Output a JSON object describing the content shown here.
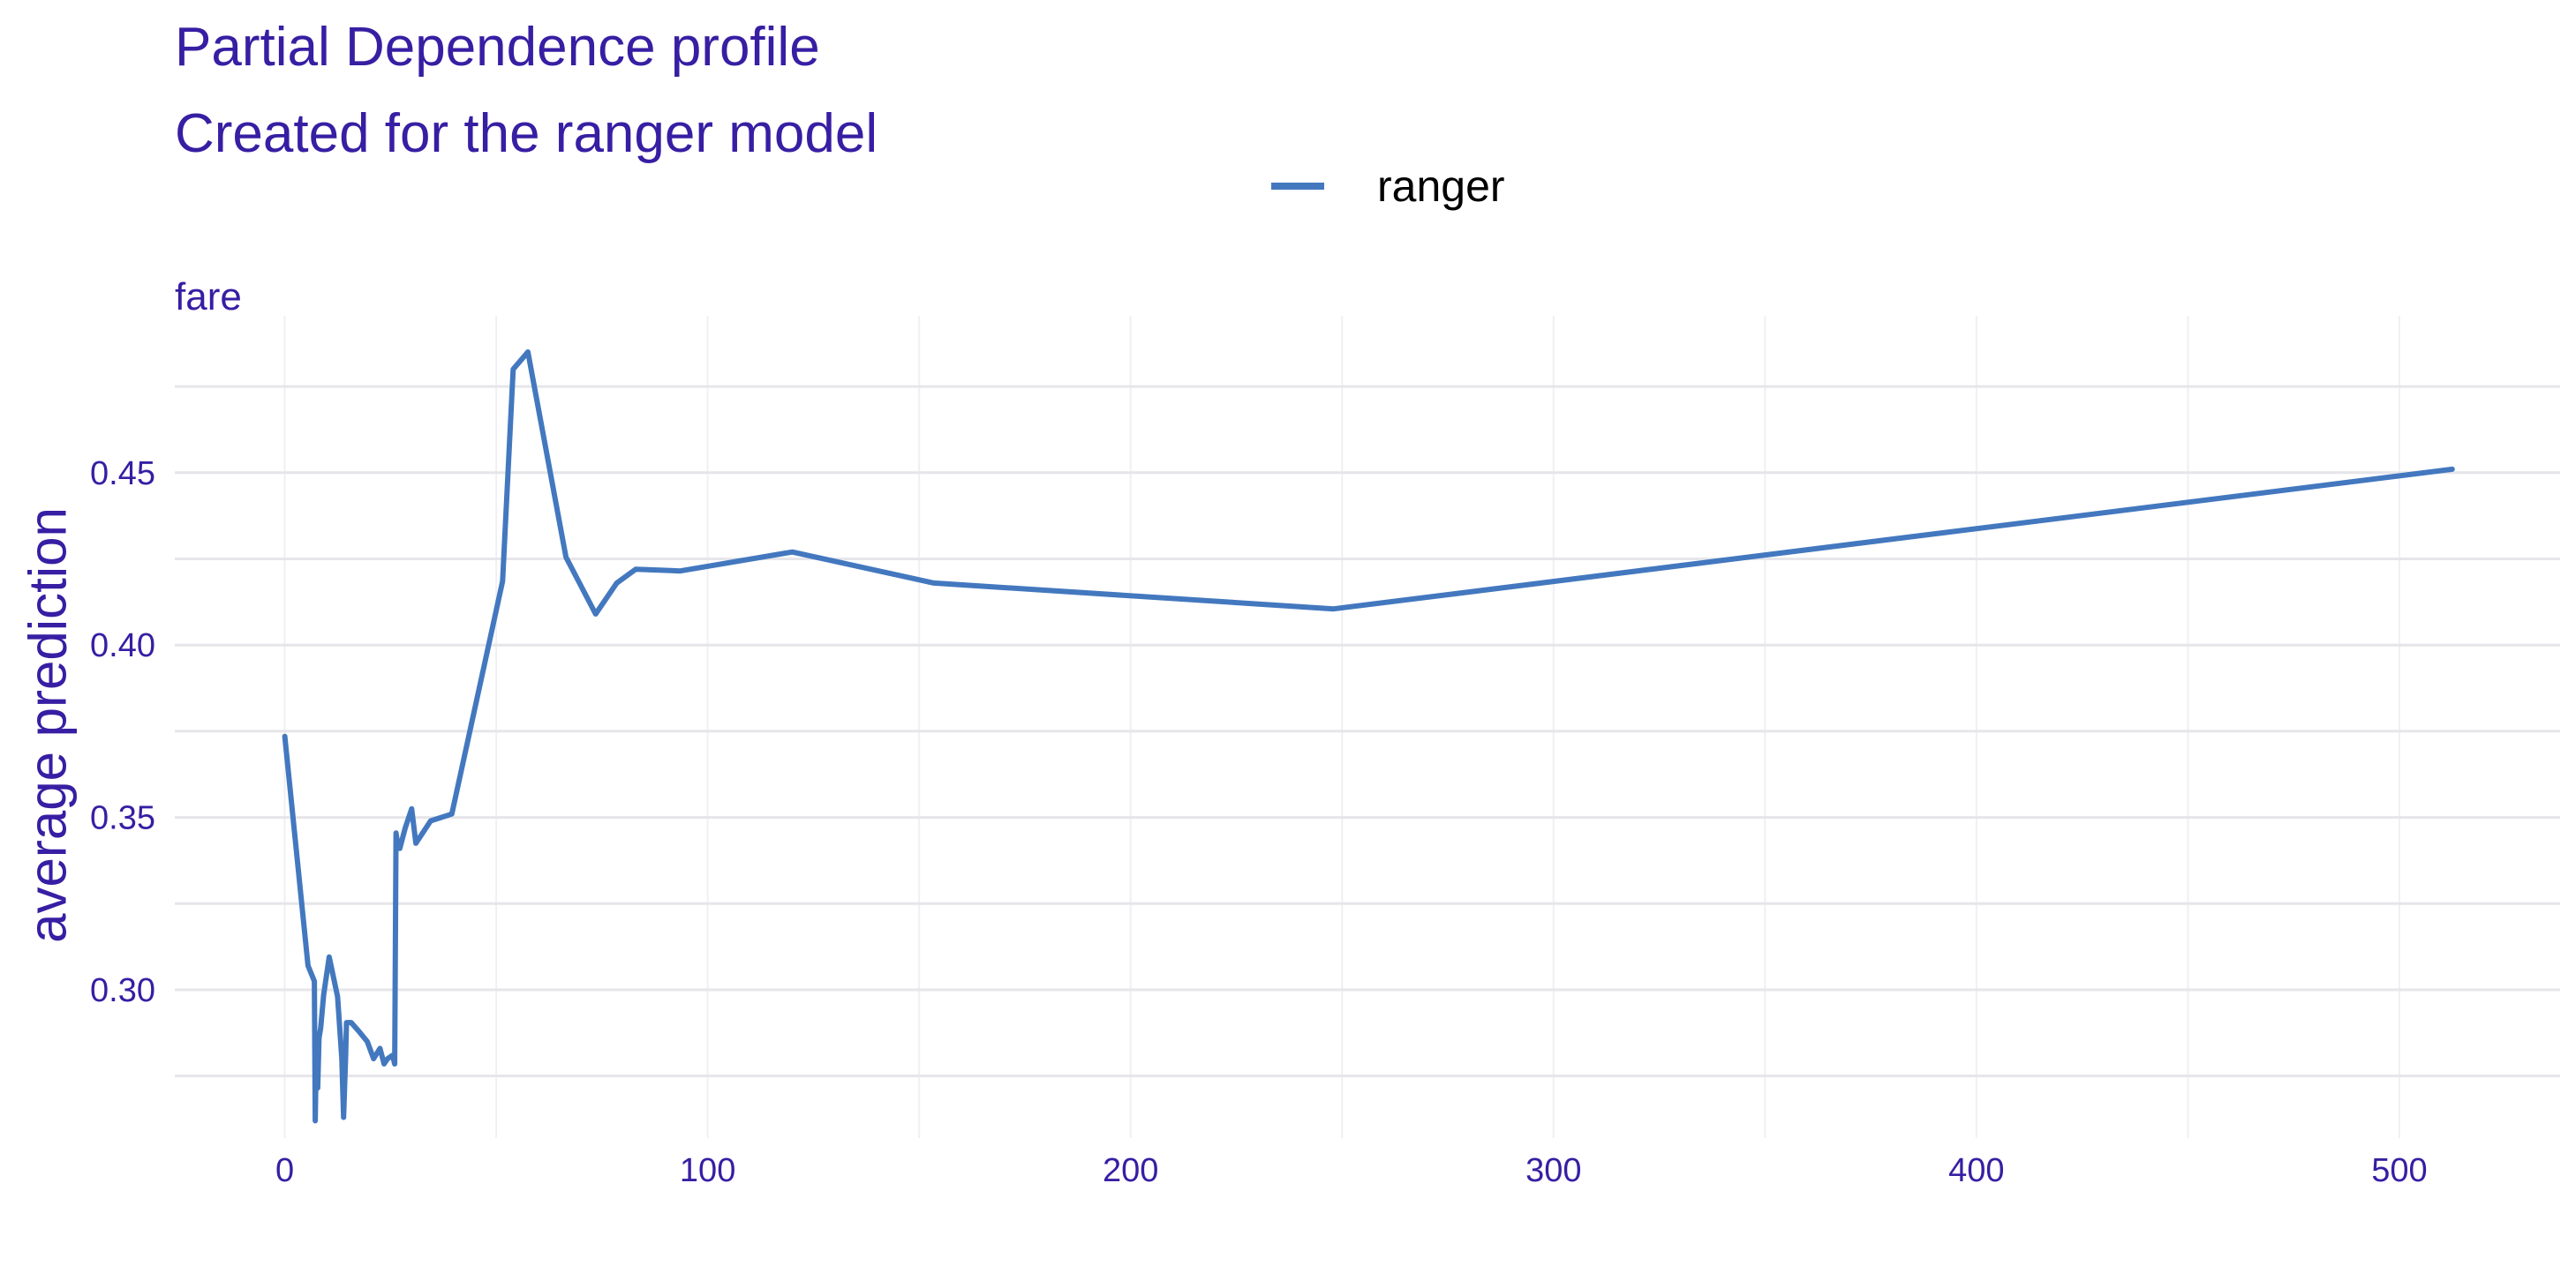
{
  "chart_data": {
    "type": "line",
    "title": "Partial Dependence profile",
    "subtitle": "Created for the ranger model",
    "panel_label": "fare",
    "xlabel": "",
    "ylabel": "average prediction",
    "xlim": [
      -26,
      538
    ],
    "ylim": [
      0.257,
      0.4955
    ],
    "x_ticks": [
      0,
      100,
      200,
      300,
      400,
      500
    ],
    "x_tick_labels": [
      "0",
      "100",
      "200",
      "300",
      "400",
      "500"
    ],
    "x_minor": [
      50,
      150,
      250,
      350,
      450
    ],
    "y_ticks": [
      0.3,
      0.35,
      0.4,
      0.45
    ],
    "y_tick_labels": [
      "0.30",
      "0.35",
      "0.40",
      "0.45"
    ],
    "y_minor": [
      0.275,
      0.325,
      0.375,
      0.425,
      0.475
    ],
    "grid": true,
    "legend_position": "top",
    "series": [
      {
        "name": "ranger",
        "color": "#4378bf",
        "x": [
          0,
          5.5,
          7.0,
          7.2,
          7.5,
          7.8,
          8.1,
          8.5,
          9.2,
          10.5,
          12.5,
          13.5,
          13.9,
          14.4,
          14.6,
          15.7,
          17.5,
          19.5,
          21.0,
          22.5,
          23.5,
          24.3,
          25.5,
          26.0,
          26.3,
          26.6,
          27.2,
          28.5,
          30.0,
          31.0,
          34.5,
          39.5,
          51.5,
          54.0,
          57.5,
          66.5,
          73.5,
          78.5,
          83.0,
          93.5,
          120.0,
          153.5,
          248.0,
          512.5
        ],
        "y": [
          0.3735,
          0.307,
          0.3025,
          0.262,
          0.286,
          0.2715,
          0.286,
          0.289,
          0.2985,
          0.3095,
          0.298,
          0.28,
          0.263,
          0.2805,
          0.2905,
          0.2905,
          0.288,
          0.285,
          0.28,
          0.283,
          0.2785,
          0.28,
          0.281,
          0.2785,
          0.3455,
          0.343,
          0.341,
          0.347,
          0.3525,
          0.3425,
          0.349,
          0.351,
          0.4185,
          0.48,
          0.485,
          0.4255,
          0.409,
          0.418,
          0.422,
          0.4215,
          0.427,
          0.418,
          0.4105,
          0.451
        ]
      }
    ]
  }
}
